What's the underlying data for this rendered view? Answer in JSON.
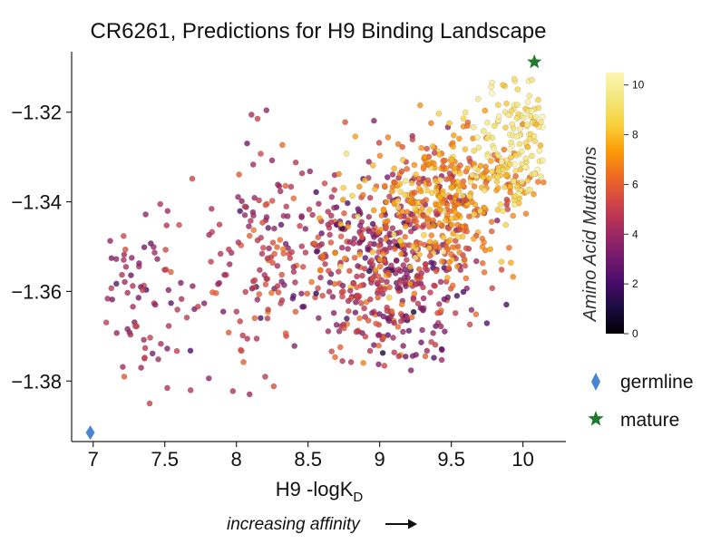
{
  "chart_data": {
    "type": "scatter",
    "title": "CR6261, Predictions for H9 Binding Landscape",
    "xlabel_main": "H9 -logK",
    "xlabel_sub": "D",
    "annotation": "increasing affinity",
    "xlim": [
      6.85,
      10.3
    ],
    "ylim": [
      -1.3935,
      -1.3065
    ],
    "xticks": [
      7,
      7.5,
      8,
      8.5,
      9,
      9.5,
      10
    ],
    "xtick_labels": [
      "7",
      "7.5",
      "8",
      "8.5",
      "9",
      "9.5",
      "10"
    ],
    "yticks": [
      -1.32,
      -1.34,
      -1.36,
      -1.38
    ],
    "ytick_labels": [
      "−1.32",
      "−1.34",
      "−1.36",
      "−1.38"
    ],
    "colorbar": {
      "title": "Amino Acid Mutations",
      "range": [
        0,
        10.5
      ],
      "ticks": [
        0,
        2,
        4,
        6,
        8,
        10
      ],
      "tick_labels": [
        "0",
        "2",
        "4",
        "6",
        "8",
        "10"
      ],
      "colormap": "inferno"
    },
    "special_points": [
      {
        "name": "germline",
        "x": 6.98,
        "y": -1.3915,
        "marker": "diamond",
        "color": "#4a86cf"
      },
      {
        "name": "mature",
        "x": 10.08,
        "y": -1.3088,
        "marker": "star",
        "color": "#1f7a2e"
      }
    ],
    "scatter_clusters": [
      {
        "cx": 7.35,
        "cy": -1.362,
        "sx": 0.18,
        "sy": 0.011,
        "n": 75,
        "mut": 4.2,
        "mutsd": 0.9
      },
      {
        "cx": 8.25,
        "cy": -1.352,
        "sx": 0.3,
        "sy": 0.012,
        "n": 170,
        "mut": 4.8,
        "mutsd": 1.0
      },
      {
        "cx": 9.1,
        "cy": -1.354,
        "sx": 0.28,
        "sy": 0.011,
        "n": 470,
        "mut": 4.4,
        "mutsd": 1.3
      },
      {
        "cx": 9.45,
        "cy": -1.339,
        "sx": 0.28,
        "sy": 0.008,
        "n": 430,
        "mut": 7.2,
        "mutsd": 1.1
      },
      {
        "cx": 9.95,
        "cy": -1.327,
        "sx": 0.16,
        "sy": 0.008,
        "n": 150,
        "mut": 9.3,
        "mutsd": 0.8
      }
    ],
    "point_color_note": "point color encodes number of amino acid mutations",
    "grid": false,
    "legend_placement": "right, below colorbar"
  }
}
